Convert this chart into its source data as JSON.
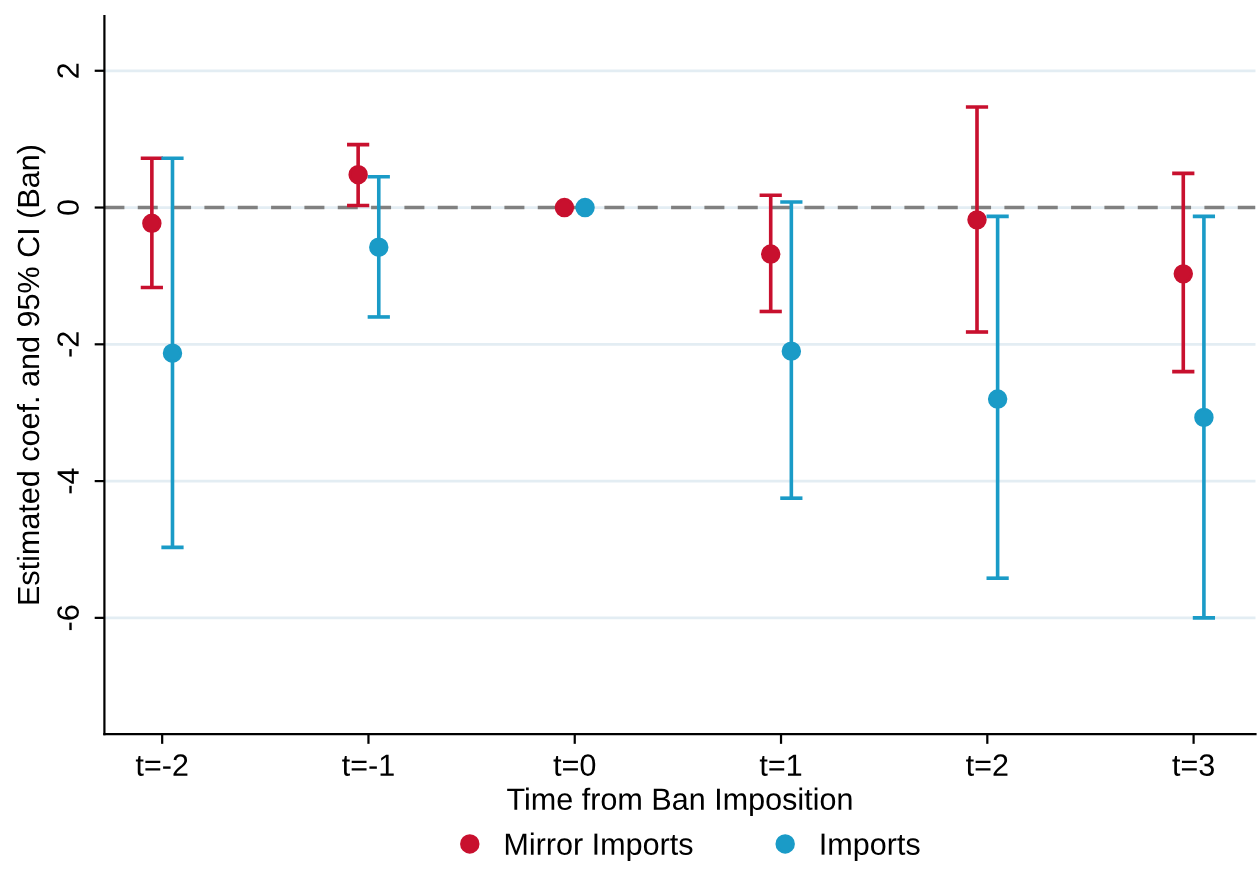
{
  "chart_data": {
    "type": "scatter",
    "xlabel": "Time from Ban Imposition",
    "ylabel": "Estimated coef. and 95% CI (Ban)",
    "categories": [
      "t=-2",
      "t=-1",
      "t=0",
      "t=1",
      "t=2",
      "t=3"
    ],
    "series": [
      {
        "name": "Mirror Imports",
        "color": "#c8102e",
        "values": [
          -0.23,
          0.48,
          0,
          -0.68,
          -0.18,
          -0.97
        ],
        "errors": [
          [
            -1.17,
            0.72
          ],
          [
            0.03,
            0.92
          ],
          null,
          [
            -1.52,
            0.18
          ],
          [
            -1.82,
            1.47
          ],
          [
            -2.4,
            0.5
          ]
        ]
      },
      {
        "name": "Imports",
        "color": "#1a9bc7",
        "values": [
          -2.13,
          -0.58,
          0,
          -2.1,
          -2.8,
          -3.07
        ],
        "errors": [
          [
            -4.97,
            0.72
          ],
          [
            -1.6,
            0.45
          ],
          null,
          [
            -4.25,
            0.08
          ],
          [
            -5.42,
            -0.13
          ],
          [
            -6.0,
            -0.13
          ]
        ]
      }
    ],
    "ylim": [
      -7.7,
      2.8
    ],
    "yticks": [
      -6,
      -4,
      -2,
      0,
      2
    ],
    "grid": "y",
    "legend": "bottom",
    "marker": "circle",
    "ref_lines": [
      {
        "axis": "y",
        "value": 0,
        "color": "#808080",
        "line_style": "dashed"
      }
    ]
  }
}
